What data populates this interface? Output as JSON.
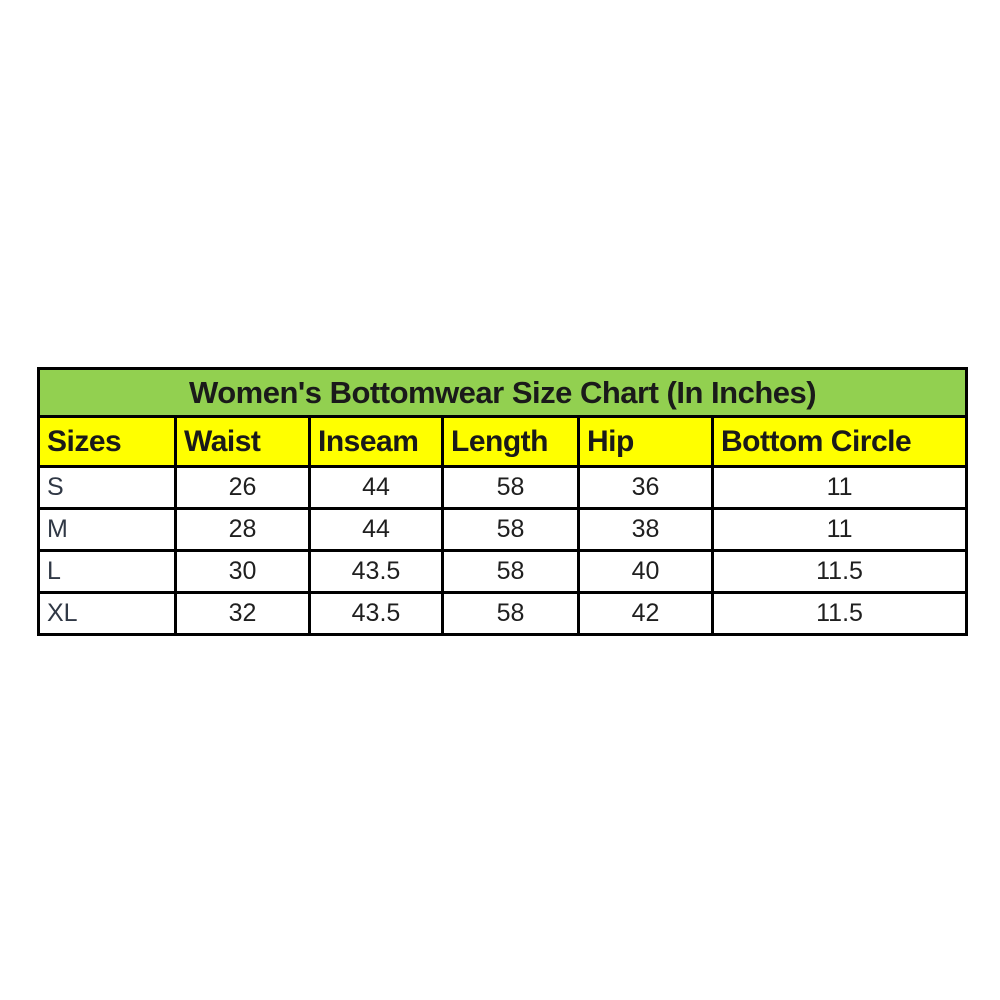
{
  "chart": {
    "title": "Women's Bottomwear Size Chart (In Inches)",
    "columns": [
      "Sizes",
      "Waist",
      "Inseam",
      "Length",
      "Hip",
      "Bottom Circle"
    ],
    "rows": [
      {
        "size": "S",
        "values": [
          "26",
          "44",
          "58",
          "36",
          "11"
        ]
      },
      {
        "size": "M",
        "values": [
          "28",
          "44",
          "58",
          "38",
          "11"
        ]
      },
      {
        "size": "L",
        "values": [
          "30",
          "43.5",
          "58",
          "40",
          "11.5"
        ]
      },
      {
        "size": "XL",
        "values": [
          "32",
          "43.5",
          "58",
          "42",
          "11.5"
        ]
      }
    ],
    "colors": {
      "title_bg": "#92D050",
      "header_bg": "#FFFF00",
      "border": "#000000",
      "row_bg": "#FFFFFF"
    }
  }
}
